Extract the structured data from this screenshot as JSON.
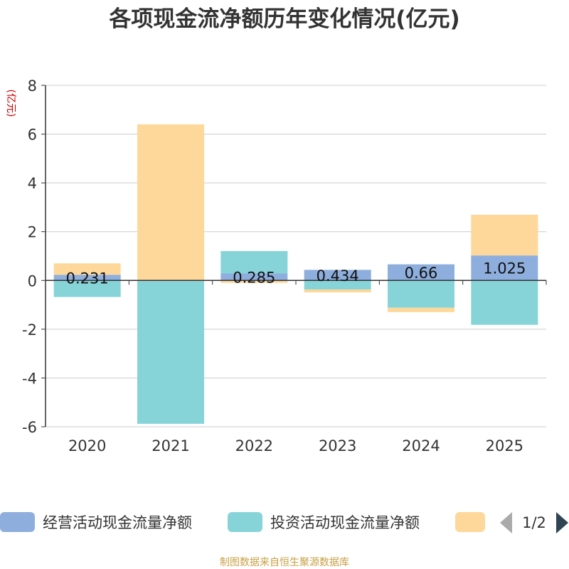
{
  "chart_data": {
    "type": "bar",
    "stacked": true,
    "title": "各项现金流净额历年变化情况(亿元)",
    "ylabel": "(亿元)",
    "xlabel": "",
    "categories": [
      "2020",
      "2021",
      "2022",
      "2023",
      "2024",
      "2025"
    ],
    "ylim": [
      -6,
      8
    ],
    "yticks": [
      -6,
      -4,
      -2,
      0,
      2,
      4,
      6,
      8
    ],
    "grid": true,
    "legend_position": "bottom",
    "series": [
      {
        "name": "经营活动现金流量净额",
        "color": "#8eaedd",
        "values": [
          0.231,
          -0.03,
          0.285,
          0.434,
          0.66,
          1.025
        ],
        "labels": [
          "0.231",
          "",
          "0.285",
          "0.434",
          "0.66",
          "1.025"
        ]
      },
      {
        "name": "投资活动现金流量净额",
        "color": "#86d4d8",
        "values": [
          -0.68,
          -5.85,
          0.92,
          -0.37,
          -1.12,
          -1.82
        ],
        "labels": [
          "",
          "",
          "",
          "",
          "",
          ""
        ]
      },
      {
        "name": "",
        "color": "#fdd89a",
        "values": [
          0.47,
          6.4,
          -0.1,
          -0.12,
          -0.18,
          1.67
        ],
        "labels": [
          "",
          "",
          "",
          "",
          "",
          ""
        ]
      }
    ]
  },
  "legend": {
    "page_indicator": "1/2"
  },
  "source": "制图数据来自恒生聚源数据库"
}
